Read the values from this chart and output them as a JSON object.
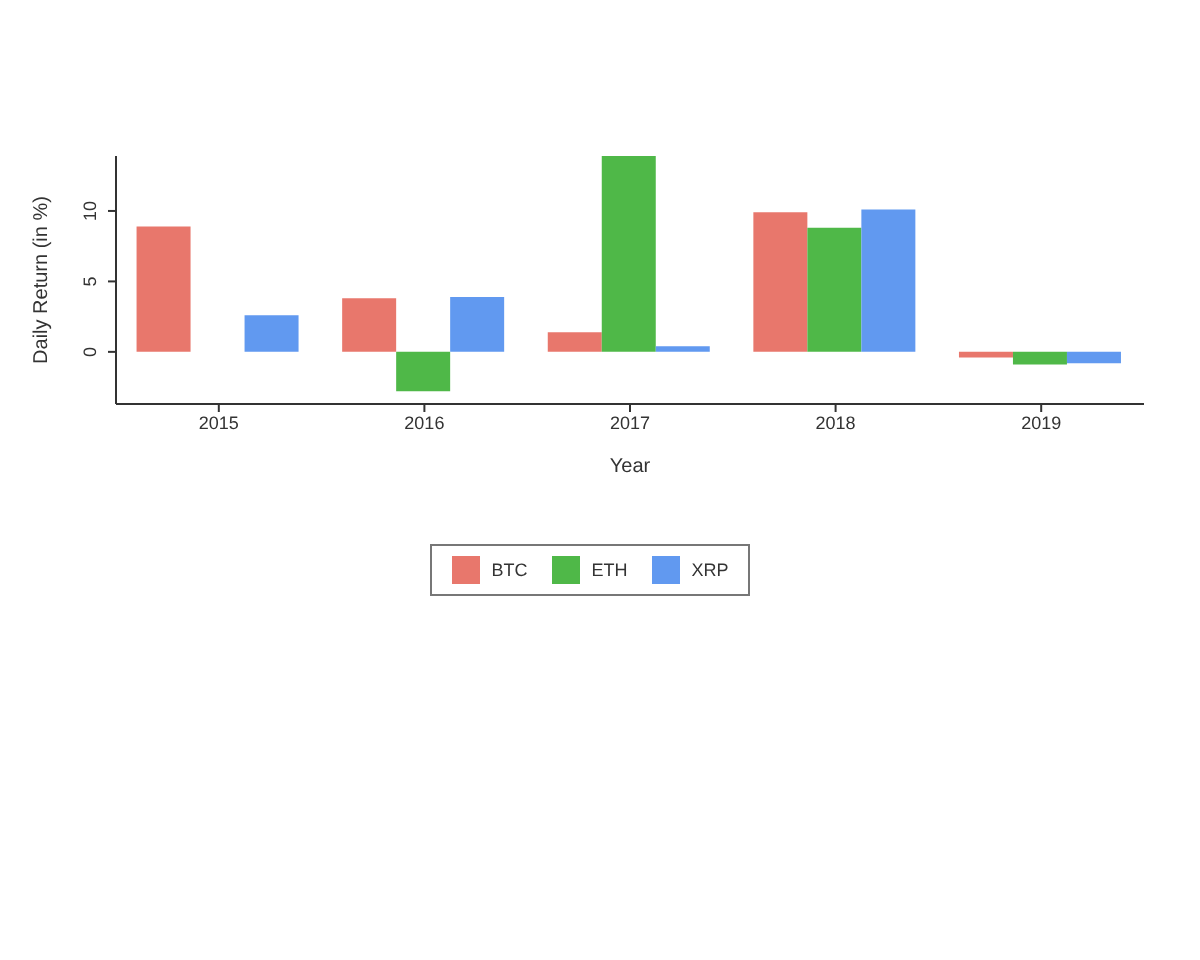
{
  "chart_data": {
    "type": "bar",
    "xlabel": "Year",
    "ylabel": "Daily Return (in %)",
    "categories": [
      "2015",
      "2016",
      "2017",
      "2018",
      "2019"
    ],
    "series": [
      {
        "name": "BTC",
        "color": "#e8776c",
        "values": [
          8.9,
          3.8,
          1.4,
          9.9,
          -0.4
        ]
      },
      {
        "name": "ETH",
        "color": "#4fb848",
        "values": [
          null,
          -2.8,
          13.9,
          8.8,
          -0.9
        ]
      },
      {
        "name": "XRP",
        "color": "#6199f0",
        "values": [
          2.6,
          3.9,
          0.4,
          10.1,
          -0.8
        ]
      }
    ],
    "ylim": [
      -3.7,
      13.9
    ],
    "yticks": [
      0,
      5,
      10
    ],
    "grid": false,
    "legend": "bottom"
  }
}
